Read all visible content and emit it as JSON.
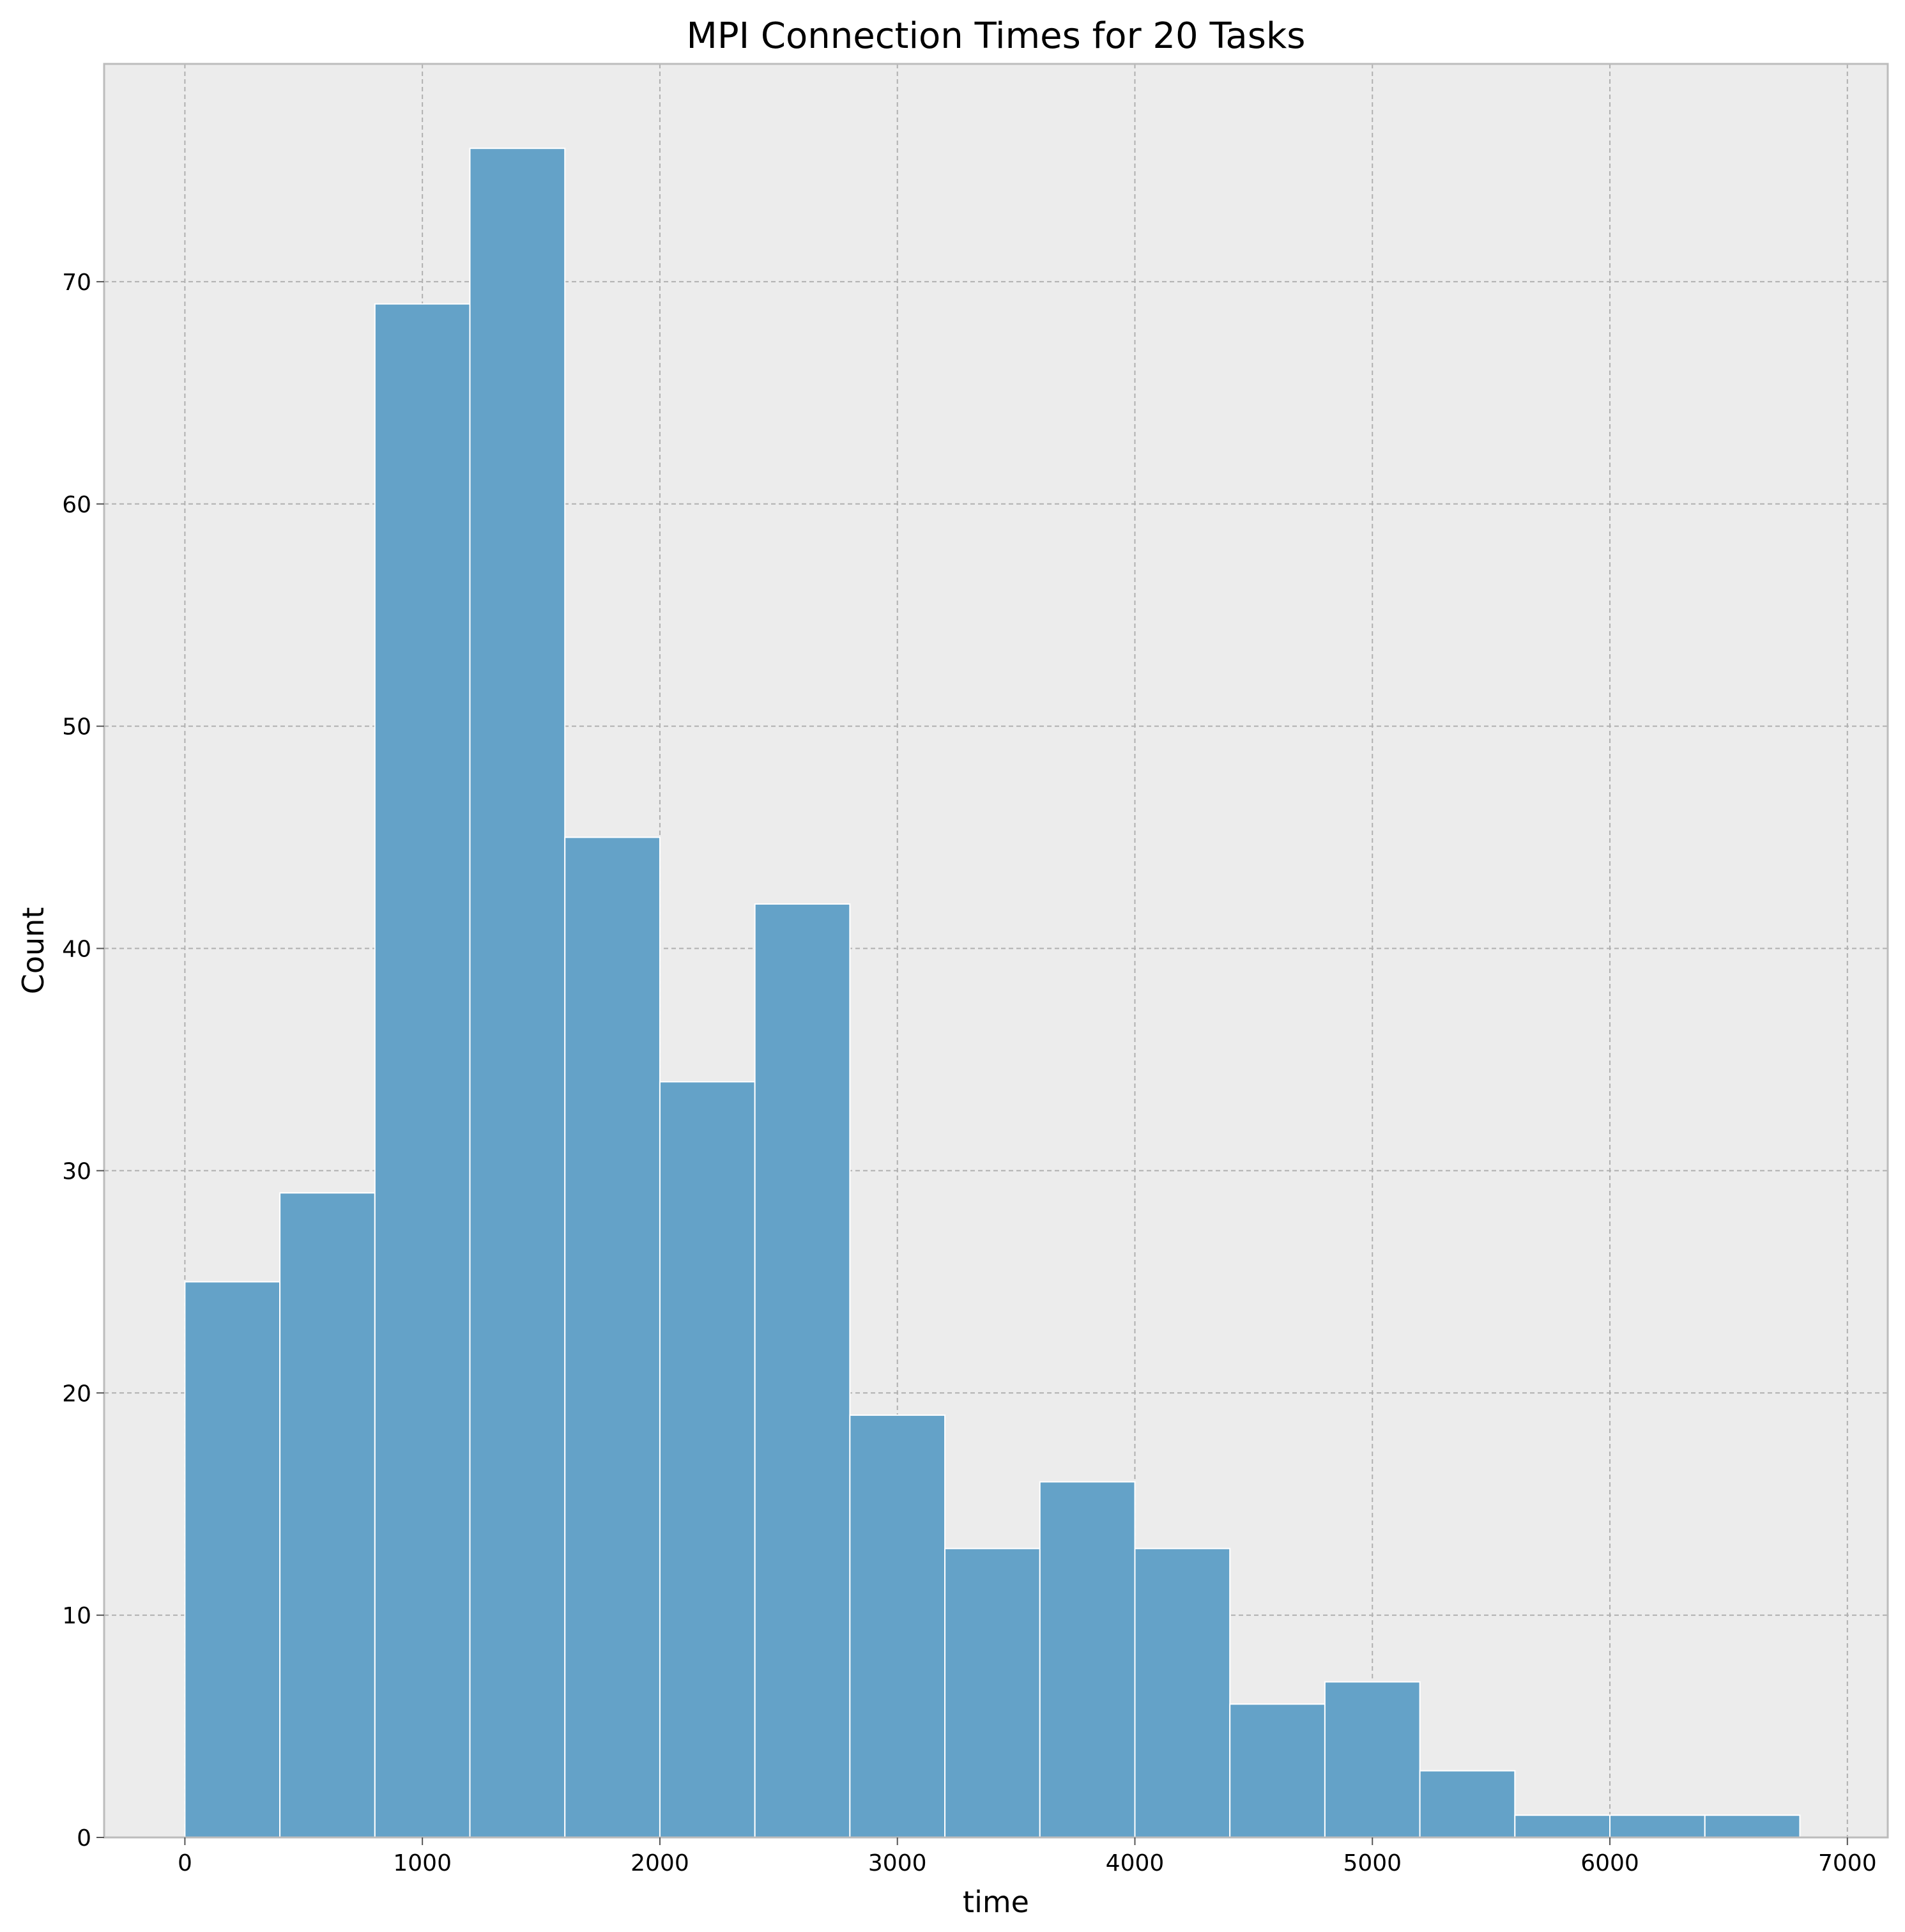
{
  "chart_data": {
    "type": "bar",
    "title": "MPI Connection Times for 20 Tasks",
    "xlabel": "time",
    "ylabel": "Count",
    "xlim": [
      -340,
      7170
    ],
    "ylim": [
      0,
      79.8
    ],
    "grid": true,
    "bin_edges": [
      0,
      400,
      800,
      1200,
      1600,
      2000,
      2400,
      2800,
      3200,
      3600,
      4000,
      4400,
      4800,
      5200,
      5600,
      6000,
      6400,
      6800
    ],
    "values": [
      25,
      29,
      69,
      76,
      45,
      34,
      42,
      19,
      13,
      16,
      13,
      6,
      7,
      3,
      1,
      1,
      1
    ],
    "xticks": [
      0,
      1000,
      2000,
      3000,
      4000,
      5000,
      6000,
      7000
    ],
    "yticks": [
      0,
      10,
      20,
      30,
      40,
      50,
      60,
      70
    ],
    "colors": {
      "bar": "#64a2c8",
      "plot_bg": "#ececec",
      "frame": "#bcbcbc"
    }
  }
}
